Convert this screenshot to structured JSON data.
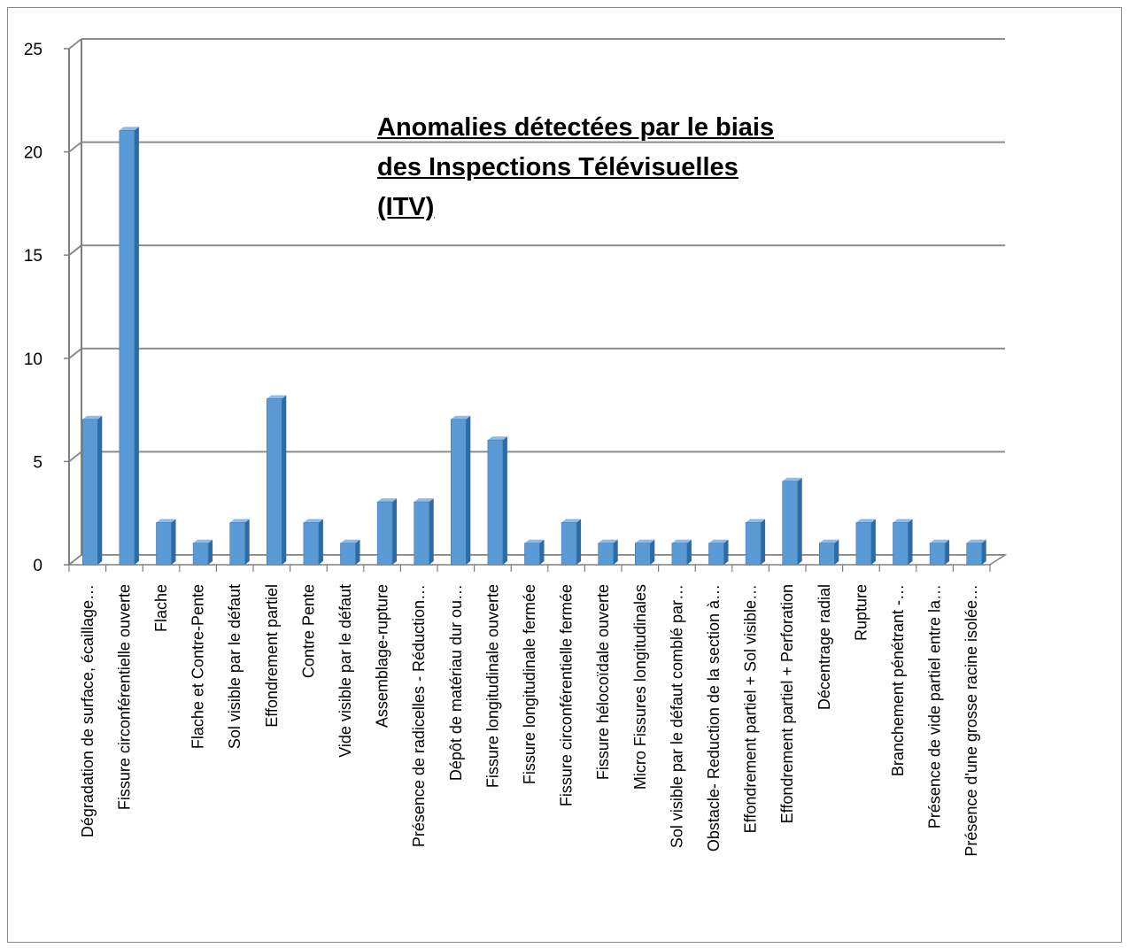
{
  "chart_data": {
    "type": "bar",
    "title": "Anomalies détectées par le biais des Inspections Télévisuelles (ITV)",
    "xlabel": "",
    "ylabel": "",
    "ylim": [
      0,
      25
    ],
    "yticks": [
      0,
      5,
      10,
      15,
      20,
      25
    ],
    "grid": true,
    "legend": "none",
    "colors": {
      "bar_front": "#5b9bd5",
      "bar_side": "#2e6aa3",
      "bar_top": "#8fbbe6",
      "grid": "#8c8c8c"
    },
    "categories": [
      "Dégradation de surface, écaillage…",
      "Fissure circonférentielle ouverte",
      "Flache",
      "Flache et Contre-Pente",
      "Sol visible par le défaut",
      "Effondrement partiel",
      "Contre Pente",
      "Vide visible par le défaut",
      "Assemblage-rupture",
      "Présence de radicelles - Réduction…",
      "Dépôt de matériau dur ou…",
      "Fissure longitudinale ouverte",
      "Fissure longitudinale fermée",
      "Fissure circonférentielle fermée",
      "Fissure hélocoïdale ouverte",
      "Micro Fissures longitudinales",
      "Sol visible par le défaut comblé par…",
      "Obstacle- Reduction de la section à…",
      "Effondrement partiel + Sol  visible…",
      "Effondrement partiel + Perforation",
      "Décentrage radial",
      "Rupture",
      "Branchement pénétrant -…",
      "Présence de vide partiel entre la…",
      "Présence d'une grosse racine isolée…"
    ],
    "values": [
      7,
      21,
      2,
      1,
      2,
      8,
      2,
      1,
      3,
      3,
      7,
      6,
      1,
      2,
      1,
      1,
      1,
      1,
      2,
      4,
      1,
      2,
      2,
      1,
      1
    ]
  }
}
